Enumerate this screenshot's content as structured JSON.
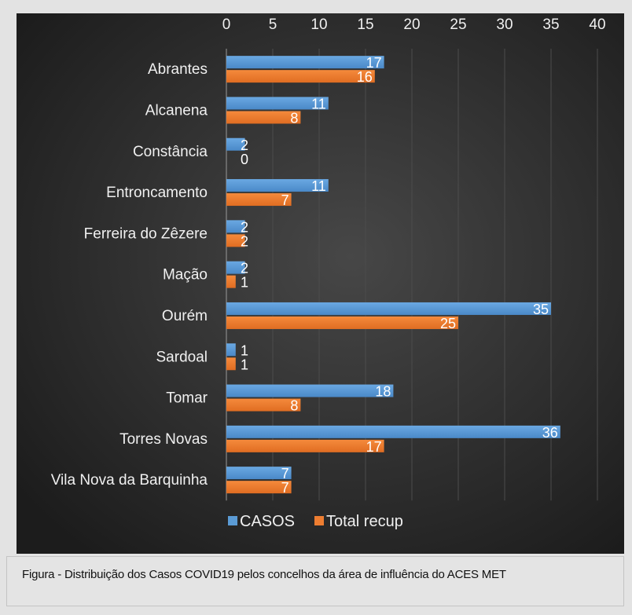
{
  "chart_data": {
    "type": "bar",
    "orientation": "horizontal",
    "title": "",
    "categories": [
      "Abrantes",
      "Alcanena",
      "Constância",
      "Entroncamento",
      "Ferreira do Zêzere",
      "Mação",
      "Ourém",
      "Sardoal",
      "Tomar",
      "Torres Novas",
      "Vila Nova da Barquinha"
    ],
    "series": [
      {
        "name": "CASOS",
        "color": "#5b9bd5",
        "values": [
          17,
          11,
          2,
          11,
          2,
          2,
          35,
          1,
          18,
          36,
          7
        ]
      },
      {
        "name": "Total recup",
        "color": "#ed7d31",
        "values": [
          16,
          8,
          0,
          7,
          2,
          1,
          25,
          1,
          8,
          17,
          7
        ]
      }
    ],
    "xlim": [
      0,
      40
    ],
    "xticks": [
      0,
      5,
      10,
      15,
      20,
      25,
      30,
      35,
      40
    ],
    "xaxis_position": "top",
    "grid": true,
    "legend": "bottom",
    "xlabel": "",
    "ylabel": ""
  },
  "caption": "Figura -  Distribuição dos Casos COVID19 pelos concelhos da área de influência do ACES MET"
}
